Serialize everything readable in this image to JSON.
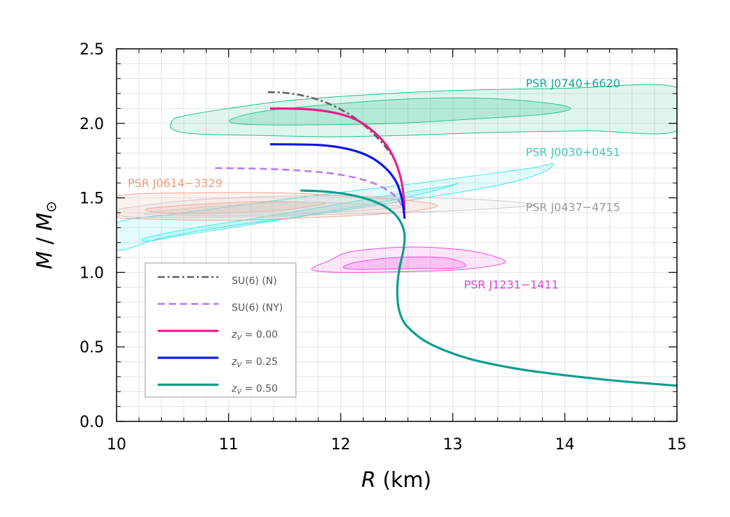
{
  "chart_data": {
    "type": "line",
    "xlabel": "R (km)",
    "ylabel": "M / M⊙",
    "xlim": [
      10,
      15
    ],
    "ylim": [
      0.0,
      2.5
    ],
    "xticks": [
      "10",
      "11",
      "12",
      "13",
      "14",
      "15"
    ],
    "yticks": [
      "0.0",
      "0.5",
      "1.0",
      "1.5",
      "2.0",
      "2.5"
    ],
    "grid": true,
    "legend_position": "bottom-left",
    "series": [
      {
        "name": "SU(6) (N)",
        "color": "#616161",
        "style": "dashdot",
        "x": [
          11.35,
          11.5,
          11.7,
          11.9,
          12.1,
          12.25,
          12.38,
          12.48
        ],
        "y": [
          2.21,
          2.205,
          2.18,
          2.13,
          2.05,
          1.96,
          1.86,
          1.76
        ]
      },
      {
        "name": "SU(6) (NY)",
        "color": "#b57cf5",
        "style": "dashed",
        "x": [
          10.88,
          11.3,
          11.7,
          12.0,
          12.25,
          12.42,
          12.52,
          12.57
        ],
        "y": [
          1.7,
          1.695,
          1.68,
          1.655,
          1.61,
          1.55,
          1.48,
          1.4
        ]
      },
      {
        "name": "z_V = 0.00",
        "color": "#ee1a8c",
        "style": "solid",
        "x": [
          11.37,
          11.7,
          11.95,
          12.15,
          12.3,
          12.42,
          12.5,
          12.55,
          12.57
        ],
        "y": [
          2.1,
          2.095,
          2.07,
          2.02,
          1.94,
          1.84,
          1.72,
          1.58,
          1.42
        ]
      },
      {
        "name": "z_V = 0.25",
        "color": "#0a14e8",
        "style": "solid",
        "x": [
          11.37,
          11.8,
          12.05,
          12.25,
          12.4,
          12.5,
          12.55,
          12.57
        ],
        "y": [
          1.86,
          1.855,
          1.83,
          1.78,
          1.7,
          1.6,
          1.48,
          1.36
        ]
      },
      {
        "name": "z_V = 0.50",
        "color": "#0c9e8c",
        "style": "solid",
        "x": [
          11.64,
          11.9,
          12.15,
          12.35,
          12.47,
          12.54,
          12.57,
          12.56,
          12.53,
          12.51,
          12.505,
          12.52,
          12.56,
          12.63,
          12.75,
          12.95,
          13.2,
          13.6,
          14.0,
          14.5,
          15.0
        ],
        "y": [
          1.55,
          1.54,
          1.51,
          1.46,
          1.4,
          1.33,
          1.25,
          1.15,
          1.05,
          0.95,
          0.85,
          0.75,
          0.67,
          0.61,
          0.54,
          0.47,
          0.41,
          0.35,
          0.31,
          0.27,
          0.24
        ]
      }
    ],
    "regions": [
      {
        "label": "PSR J0740+6620",
        "color": "#1dbf7e",
        "label_color": "#14a896",
        "label_at": [
          13.65,
          2.27
        ],
        "outer": [
          [
            10.5,
            2.02
          ],
          [
            10.6,
            2.05
          ],
          [
            11.0,
            2.1
          ],
          [
            11.5,
            2.15
          ],
          [
            12.2,
            2.19
          ],
          [
            13.0,
            2.22
          ],
          [
            14.0,
            2.235
          ],
          [
            15.0,
            2.24
          ],
          [
            15.0,
            1.95
          ],
          [
            14.2,
            1.95
          ],
          [
            13.4,
            1.94
          ],
          [
            12.6,
            1.92
          ],
          [
            11.9,
            1.91
          ],
          [
            11.2,
            1.92
          ],
          [
            10.7,
            1.93
          ],
          [
            10.5,
            1.96
          ]
        ],
        "inner": [
          [
            11.03,
            2.03
          ],
          [
            11.3,
            2.08
          ],
          [
            11.8,
            2.12
          ],
          [
            12.5,
            2.16
          ],
          [
            13.2,
            2.17
          ],
          [
            13.8,
            2.14
          ],
          [
            14.05,
            2.1
          ],
          [
            13.8,
            2.06
          ],
          [
            13.2,
            2.03
          ],
          [
            12.5,
            2.0
          ],
          [
            11.8,
            1.99
          ],
          [
            11.3,
            1.99
          ],
          [
            11.05,
            2.0
          ]
        ]
      },
      {
        "label": "PSR J0030+0451",
        "color": "#3ee6e6",
        "label_color": "#3ec8c0",
        "label_at": [
          13.65,
          1.81
        ],
        "outer": [
          [
            10.0,
            1.33
          ],
          [
            10.5,
            1.39
          ],
          [
            11.1,
            1.45
          ],
          [
            11.8,
            1.52
          ],
          [
            12.6,
            1.59
          ],
          [
            13.2,
            1.65
          ],
          [
            13.7,
            1.7
          ],
          [
            13.9,
            1.73
          ],
          [
            13.8,
            1.67
          ],
          [
            13.5,
            1.6
          ],
          [
            13.0,
            1.53
          ],
          [
            12.4,
            1.46
          ],
          [
            11.7,
            1.38
          ],
          [
            11.0,
            1.31
          ],
          [
            10.4,
            1.23
          ],
          [
            10.0,
            1.15
          ]
        ],
        "inner": [
          [
            10.25,
            1.23
          ],
          [
            10.7,
            1.3
          ],
          [
            11.3,
            1.37
          ],
          [
            12.0,
            1.46
          ],
          [
            12.6,
            1.54
          ],
          [
            12.95,
            1.58
          ],
          [
            13.05,
            1.6
          ],
          [
            12.9,
            1.56
          ],
          [
            12.5,
            1.49
          ],
          [
            11.9,
            1.41
          ],
          [
            11.2,
            1.32
          ],
          [
            10.6,
            1.25
          ],
          [
            10.3,
            1.21
          ]
        ]
      },
      {
        "label": "PSR J0614−3329",
        "color": "#f5a290",
        "label_color": "#f29b7c",
        "label_at": [
          10.1,
          1.6
        ],
        "outer": [
          [
            10.0,
            1.51
          ],
          [
            10.8,
            1.535
          ],
          [
            11.6,
            1.53
          ],
          [
            12.3,
            1.5
          ],
          [
            12.75,
            1.47
          ],
          [
            12.85,
            1.44
          ],
          [
            12.5,
            1.4
          ],
          [
            11.8,
            1.37
          ],
          [
            11.0,
            1.35
          ],
          [
            10.2,
            1.36
          ],
          [
            10.0,
            1.38
          ]
        ],
        "inner": [
          [
            10.3,
            1.43
          ],
          [
            10.8,
            1.46
          ],
          [
            11.3,
            1.475
          ],
          [
            11.75,
            1.47
          ],
          [
            11.85,
            1.46
          ],
          [
            11.5,
            1.42
          ],
          [
            11.0,
            1.4
          ],
          [
            10.5,
            1.395
          ],
          [
            10.3,
            1.41
          ]
        ]
      },
      {
        "label": "PSR J0437−4715",
        "color": "#c9c9c9",
        "label_color": "#9a9a9a",
        "label_at": [
          13.65,
          1.44
        ],
        "outer": [
          [
            10.0,
            1.42
          ],
          [
            10.6,
            1.48
          ],
          [
            11.4,
            1.51
          ],
          [
            12.3,
            1.51
          ],
          [
            13.2,
            1.49
          ],
          [
            13.7,
            1.46
          ],
          [
            13.6,
            1.44
          ],
          [
            12.9,
            1.41
          ],
          [
            12.0,
            1.39
          ],
          [
            11.0,
            1.37
          ],
          [
            10.2,
            1.37
          ],
          [
            10.0,
            1.39
          ]
        ],
        "inner": [
          [
            10.28,
            1.4
          ],
          [
            10.8,
            1.44
          ],
          [
            11.5,
            1.47
          ],
          [
            12.2,
            1.46
          ],
          [
            12.55,
            1.44
          ],
          [
            12.3,
            1.42
          ],
          [
            11.6,
            1.39
          ],
          [
            10.8,
            1.38
          ],
          [
            10.35,
            1.385
          ]
        ]
      },
      {
        "label": "PSR J1231−1411",
        "color": "#f046dc",
        "label_color": "#e040d8",
        "label_at": [
          13.1,
          0.92
        ],
        "outer": [
          [
            11.75,
            1.03
          ],
          [
            11.9,
            1.08
          ],
          [
            12.1,
            1.14
          ],
          [
            12.6,
            1.17
          ],
          [
            13.1,
            1.15
          ],
          [
            13.4,
            1.1
          ],
          [
            13.45,
            1.06
          ],
          [
            13.1,
            1.02
          ],
          [
            12.6,
            1.005
          ],
          [
            12.0,
            1.0
          ],
          [
            11.78,
            1.01
          ]
        ],
        "inner": [
          [
            12.03,
            1.04
          ],
          [
            12.15,
            1.07
          ],
          [
            12.5,
            1.1
          ],
          [
            12.9,
            1.1
          ],
          [
            13.1,
            1.06
          ],
          [
            13.05,
            1.03
          ],
          [
            12.6,
            1.025
          ],
          [
            12.2,
            1.02
          ],
          [
            12.05,
            1.025
          ]
        ]
      }
    ]
  }
}
